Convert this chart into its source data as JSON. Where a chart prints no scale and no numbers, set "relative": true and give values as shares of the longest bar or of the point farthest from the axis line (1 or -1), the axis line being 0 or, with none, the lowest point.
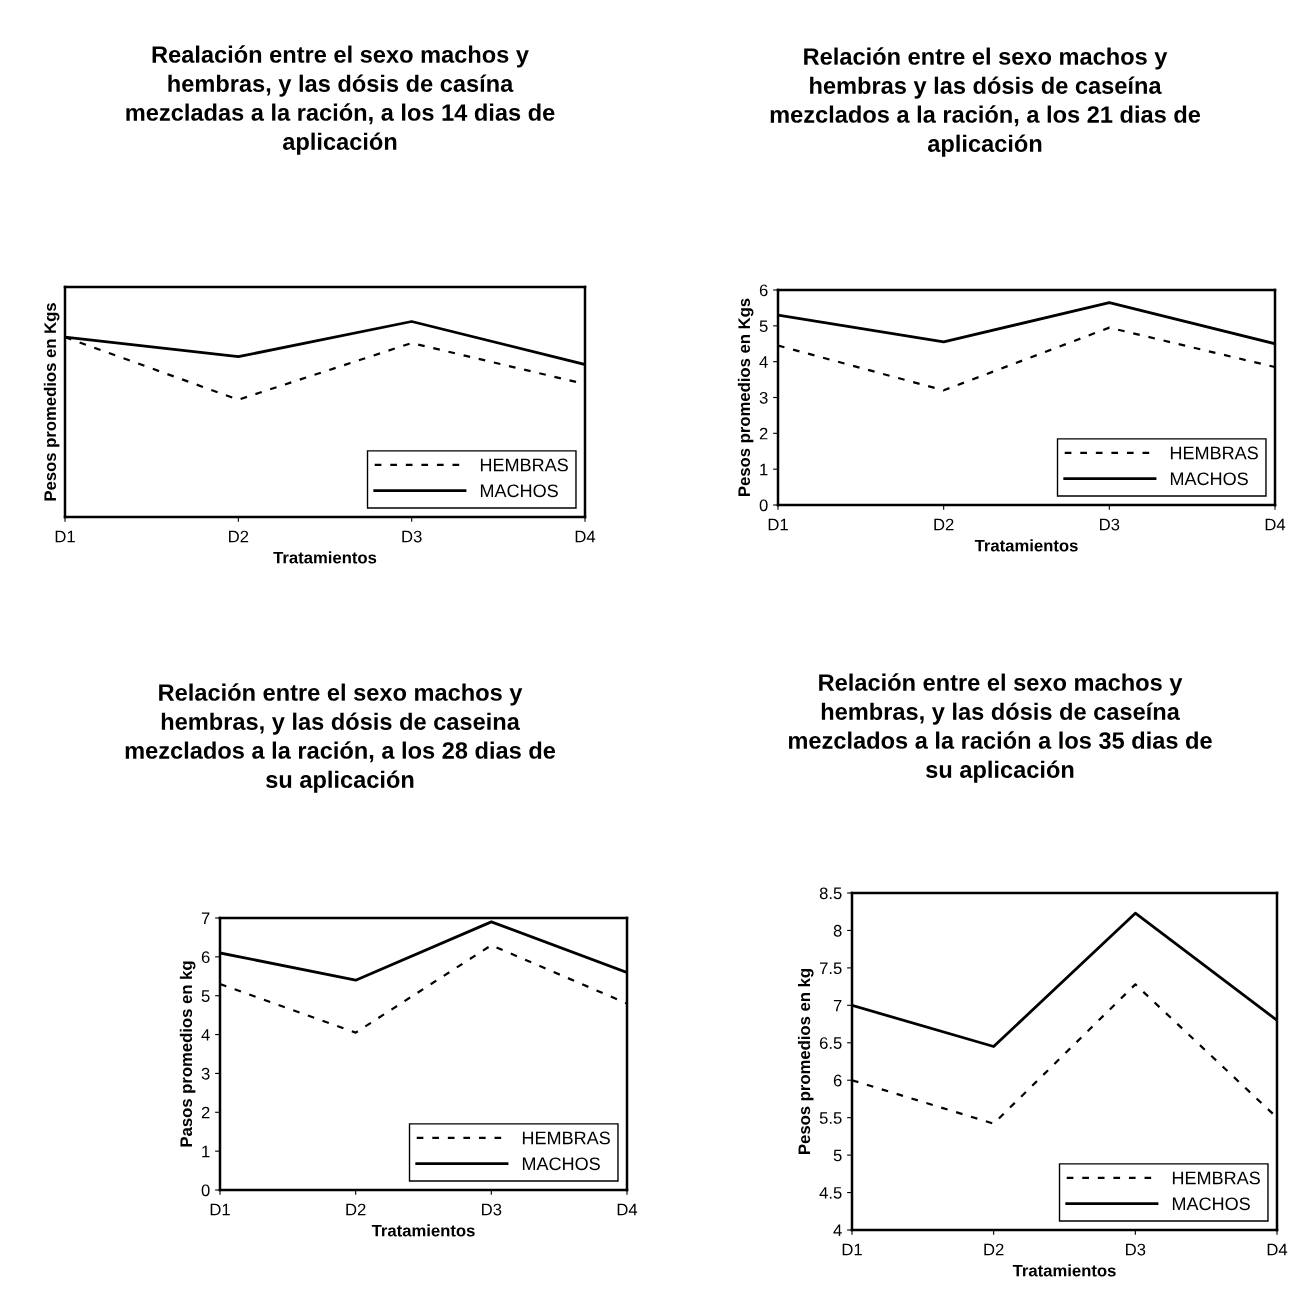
{
  "chart_data": [
    {
      "type": "line",
      "title": "Realación entre el sexo machos y\nhembras, y las dósis de casína\nmezcladas a la ración, a los 14 dias de\naplicación",
      "xlabel": "Tratamientos",
      "ylabel": "Pesos promedios en Kgs",
      "categories": [
        "D1",
        "D2",
        "D3",
        "D4"
      ],
      "relative": true,
      "legend": "bottom right",
      "grid": false,
      "series": [
        {
          "name": "HEMBRAS",
          "color": "#000000",
          "line_style": "dashed",
          "values": [
            0.92,
            0.6,
            0.89,
            0.68
          ]
        },
        {
          "name": "MACHOS",
          "color": "#000000",
          "line_style": "solid",
          "values": [
            0.92,
            0.82,
            1,
            0.78
          ]
        }
      ]
    },
    {
      "type": "line",
      "title": "Relación entre el sexo machos y\nhembras y las dósis de caseína\nmezclados a la ración, a los 21 dias de\naplicación",
      "xlabel": "Tratamientos",
      "ylabel": "Pesos promedios en Kgs",
      "categories": [
        "D1",
        "D2",
        "D3",
        "D4"
      ],
      "ylim": [
        0,
        6
      ],
      "yticks": [
        0,
        1,
        2,
        3,
        4,
        5,
        6
      ],
      "legend": "bottom right",
      "grid": false,
      "series": [
        {
          "name": "HEMBRAS",
          "color": "#000000",
          "line_style": "dashed",
          "values": [
            4.45,
            3.2,
            4.95,
            3.85
          ]
        },
        {
          "name": "MACHOS",
          "color": "#000000",
          "line_style": "solid",
          "values": [
            5.3,
            4.55,
            5.65,
            4.5
          ]
        }
      ]
    },
    {
      "type": "line",
      "title": "Relación entre el sexo machos y\nhembras, y las dósis de caseina\nmezclados a la ración, a los 28 dias de\nsu aplicación",
      "xlabel": "Tratamientos",
      "ylabel": "Pasos promedios en kg",
      "categories": [
        "D1",
        "D2",
        "D3",
        "D4"
      ],
      "ylim": [
        0,
        7
      ],
      "yticks": [
        0,
        1,
        2,
        3,
        4,
        5,
        6,
        7
      ],
      "legend": "bottom right",
      "grid": false,
      "series": [
        {
          "name": "HEMBRAS",
          "color": "#000000",
          "line_style": "dashed",
          "values": [
            5.3,
            4.05,
            6.3,
            4.8
          ]
        },
        {
          "name": "MACHOS",
          "color": "#000000",
          "line_style": "solid",
          "values": [
            6.1,
            5.4,
            6.9,
            5.6
          ]
        }
      ]
    },
    {
      "type": "line",
      "title": "Relación entre el sexo machos y\nhembras, y las dósis de caseína\nmezclados a la ración a los 35 dias de\nsu aplicación",
      "xlabel": "Tratamientos",
      "ylabel": "Pesos promedios en kg",
      "categories": [
        "D1",
        "D2",
        "D3",
        "D4"
      ],
      "ylim": [
        4,
        8.5
      ],
      "yticks": [
        4,
        4.5,
        5,
        5.5,
        6,
        6.5,
        7,
        7.5,
        8,
        8.5
      ],
      "legend": "bottom right",
      "grid": false,
      "series": [
        {
          "name": "HEMBRAS",
          "color": "#000000",
          "line_style": "dashed",
          "values": [
            6.0,
            5.42,
            7.28,
            5.5
          ]
        },
        {
          "name": "MACHOS",
          "color": "#000000",
          "line_style": "solid",
          "values": [
            7.0,
            6.45,
            8.23,
            6.8
          ]
        }
      ]
    }
  ]
}
